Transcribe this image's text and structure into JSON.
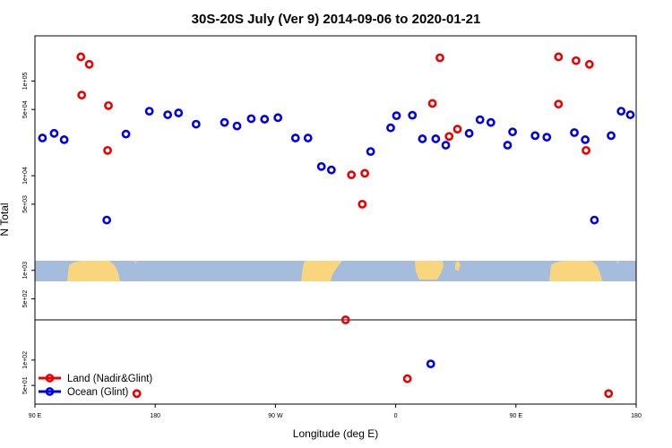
{
  "chart_data": {
    "type": "scatter",
    "title": "30S-20S July (Ver 9)   2014-09-06 to 2020-01-21",
    "xlabel": "Longitude (deg E)",
    "ylabel": "N Total",
    "xlim": [
      90,
      450
    ],
    "y_scale": "log",
    "top_panel": {
      "ylim": [
        300,
        300000
      ]
    },
    "bottom_panel": {
      "ylim": [
        30,
        300
      ]
    },
    "x_ticks": [
      {
        "value": 90,
        "label": "90 E"
      },
      {
        "value": 162,
        "label": "180"
      },
      {
        "value": 234,
        "label": "90 W"
      },
      {
        "value": 306,
        "label": "0"
      },
      {
        "value": 378,
        "label": "90 E"
      },
      {
        "value": 450,
        "label": "180"
      }
    ],
    "top_y_ticks": [
      {
        "value": 500,
        "label": "5e+02"
      },
      {
        "value": 1000,
        "label": "1e+03"
      },
      {
        "value": 5000,
        "label": "5e+03"
      },
      {
        "value": 10000,
        "label": "1e+04"
      },
      {
        "value": 50000,
        "label": "5e+04"
      },
      {
        "value": 100000,
        "label": "1e+05"
      }
    ],
    "bottom_y_ticks": [
      {
        "value": 50,
        "label": "5e+01"
      },
      {
        "value": 100,
        "label": "1e+02"
      }
    ],
    "map_strip": {
      "y_range": [
        600,
        1000
      ],
      "ocean_color": "#a5bcdc",
      "land_color": "#f9d67e"
    },
    "series": [
      {
        "name": "Land (Nadir&Glint)",
        "color": "#ee0000",
        "top": [
          {
            "x": 118,
            "y": 71000
          },
          {
            "x": 117.5,
            "y": 180000
          },
          {
            "x": 122.5,
            "y": 150000
          },
          {
            "x": 133.5,
            "y": 18500
          },
          {
            "x": 134,
            "y": 55000
          },
          {
            "x": 276,
            "y": 300
          },
          {
            "x": 279.5,
            "y": 10200
          },
          {
            "x": 287.5,
            "y": 10600
          },
          {
            "x": 286,
            "y": 5000
          },
          {
            "x": 328,
            "y": 58000
          },
          {
            "x": 332.5,
            "y": 176000
          },
          {
            "x": 343,
            "y": 31000
          },
          {
            "x": 338,
            "y": 26000
          },
          {
            "x": 403.5,
            "y": 57000
          },
          {
            "x": 403.5,
            "y": 180000
          },
          {
            "x": 414,
            "y": 164000
          },
          {
            "x": 422,
            "y": 150000
          },
          {
            "x": 420,
            "y": 18500
          }
        ],
        "bottom": [
          {
            "x": 151,
            "y": 40
          },
          {
            "x": 313,
            "y": 60
          },
          {
            "x": 433.5,
            "y": 40
          }
        ]
      },
      {
        "name": "Ocean (Glint)",
        "color": "#0000ee",
        "top": [
          {
            "x": 94.5,
            "y": 25000
          },
          {
            "x": 101.5,
            "y": 28000
          },
          {
            "x": 107.5,
            "y": 24000
          },
          {
            "x": 133,
            "y": 3400
          },
          {
            "x": 144.5,
            "y": 27500
          },
          {
            "x": 158.5,
            "y": 48000
          },
          {
            "x": 169.5,
            "y": 44000
          },
          {
            "x": 176,
            "y": 46000
          },
          {
            "x": 186.5,
            "y": 35000
          },
          {
            "x": 203.5,
            "y": 36500
          },
          {
            "x": 211,
            "y": 33500
          },
          {
            "x": 219.5,
            "y": 40000
          },
          {
            "x": 227.5,
            "y": 39500
          },
          {
            "x": 235.5,
            "y": 41000
          },
          {
            "x": 246,
            "y": 25000
          },
          {
            "x": 253.5,
            "y": 25000
          },
          {
            "x": 261.5,
            "y": 12500
          },
          {
            "x": 267.5,
            "y": 11500
          },
          {
            "x": 291,
            "y": 18000
          },
          {
            "x": 303,
            "y": 32000
          },
          {
            "x": 306.5,
            "y": 43000
          },
          {
            "x": 316,
            "y": 43500
          },
          {
            "x": 322,
            "y": 24500
          },
          {
            "x": 330,
            "y": 24500
          },
          {
            "x": 336,
            "y": 21000
          },
          {
            "x": 350,
            "y": 28000
          },
          {
            "x": 356.5,
            "y": 39000
          },
          {
            "x": 363,
            "y": 36500
          },
          {
            "x": 373,
            "y": 21000
          },
          {
            "x": 376,
            "y": 29000
          },
          {
            "x": 389.5,
            "y": 26500
          },
          {
            "x": 396.5,
            "y": 25500
          },
          {
            "x": 413,
            "y": 28500
          },
          {
            "x": 419.5,
            "y": 24000
          },
          {
            "x": 425,
            "y": 3400
          },
          {
            "x": 435,
            "y": 26500
          },
          {
            "x": 441,
            "y": 48000
          },
          {
            "x": 446.5,
            "y": 44000
          }
        ],
        "bottom": [
          {
            "x": 327,
            "y": 90
          }
        ]
      }
    ]
  }
}
